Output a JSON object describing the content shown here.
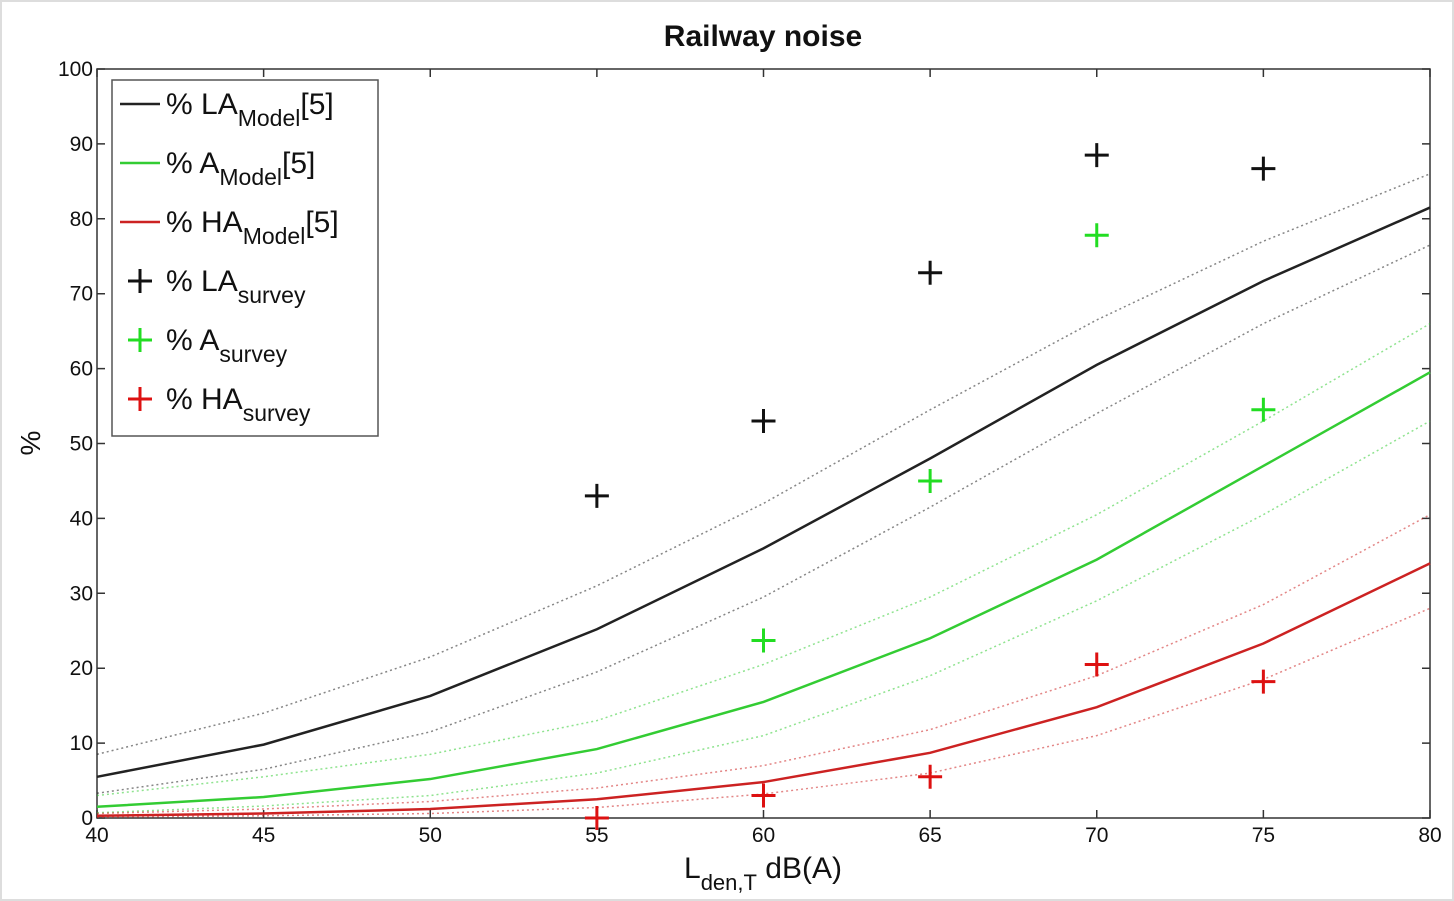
{
  "chart_data": {
    "type": "line",
    "title": "Railway noise",
    "xlabel": [
      "L",
      "den,T",
      " dB(A)"
    ],
    "ylabel": "%",
    "xlim": [
      40,
      80
    ],
    "xticks": [
      40,
      45,
      50,
      55,
      60,
      65,
      70,
      75,
      80
    ],
    "ylim": [
      0,
      100
    ],
    "yticks": [
      0,
      10,
      20,
      30,
      40,
      50,
      60,
      70,
      80,
      90,
      100
    ],
    "grid": false,
    "legend": "upper left",
    "series": [
      {
        "name": [
          "% LA",
          "Model",
          "[5]"
        ],
        "marker": "line",
        "color": "#222222",
        "x": [
          40,
          45,
          50,
          55,
          60,
          65,
          70,
          75,
          80
        ],
        "values": [
          5.5,
          9.8,
          16.3,
          25.2,
          36,
          48,
          60.5,
          71.7,
          81.5
        ],
        "lower": [
          3.3,
          6.5,
          11.5,
          19.5,
          29.5,
          41.5,
          54,
          66,
          76.5
        ],
        "upper": [
          8.5,
          14,
          21.5,
          31,
          42,
          54.5,
          66.5,
          77,
          86
        ]
      },
      {
        "name": [
          "% A",
          "Model",
          "[5]"
        ],
        "marker": "line",
        "color": "#33cc33",
        "x": [
          40,
          45,
          50,
          55,
          60,
          65,
          70,
          75,
          80
        ],
        "values": [
          1.5,
          2.8,
          5.2,
          9.2,
          15.5,
          24,
          34.5,
          47,
          59.5
        ],
        "lower": [
          0.7,
          1.6,
          3,
          6,
          11,
          19,
          29,
          40.5,
          53
        ],
        "upper": [
          3,
          5.5,
          8.5,
          13,
          20.5,
          29.5,
          40.5,
          53,
          66
        ]
      },
      {
        "name": [
          "% HA",
          "Model",
          "[5]"
        ],
        "marker": "line",
        "color": "#cc2222",
        "x": [
          40,
          45,
          50,
          55,
          60,
          65,
          70,
          75,
          80
        ],
        "values": [
          0.3,
          0.6,
          1.2,
          2.5,
          4.8,
          8.7,
          14.8,
          23.3,
          34
        ],
        "lower": [
          0.1,
          0.3,
          0.6,
          1.4,
          3.2,
          6,
          11,
          18.5,
          28
        ],
        "upper": [
          0.6,
          1.2,
          2.2,
          4,
          7,
          11.8,
          19,
          28.5,
          40.5
        ]
      },
      {
        "name": [
          "% LA",
          "survey"
        ],
        "marker": "plus",
        "color": "#111111",
        "x": [
          55,
          60,
          65,
          70,
          75
        ],
        "values": [
          43,
          53,
          72.8,
          88.5,
          86.7
        ]
      },
      {
        "name": [
          "% A",
          "survey"
        ],
        "marker": "plus",
        "color": "#22dd22",
        "x": [
          60,
          65,
          70,
          75
        ],
        "values": [
          23.7,
          45,
          77.8,
          54.5
        ]
      },
      {
        "name": [
          "% HA",
          "survey"
        ],
        "marker": "plus",
        "color": "#dd1111",
        "x": [
          55,
          60,
          65,
          70,
          75
        ],
        "values": [
          0,
          3,
          5.5,
          20.5,
          18.2
        ]
      }
    ]
  }
}
